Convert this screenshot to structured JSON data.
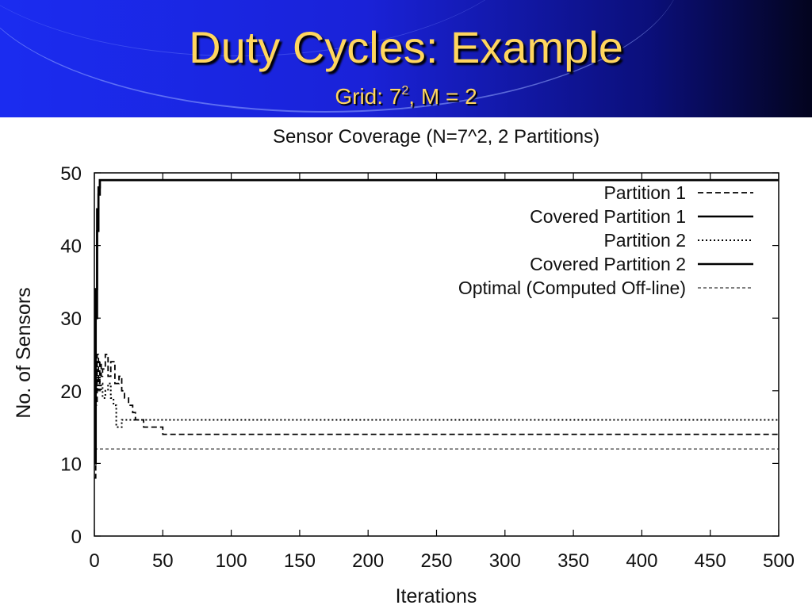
{
  "slide": {
    "title": "Duty Cycles: Example",
    "subtitle_prefix": "Grid: 7",
    "subtitle_sup": "2",
    "subtitle_suffix": ", M = 2"
  },
  "colors": {
    "title_text": "#ffd65e",
    "header_blue": "#1b2cf0",
    "header_dark": "#03041e"
  },
  "chart_data": {
    "type": "line",
    "title": "Sensor Coverage (N=7^2, 2 Partitions)",
    "xlabel": "Iterations",
    "ylabel": "No. of Sensors",
    "xlim": [
      0,
      500
    ],
    "ylim": [
      0,
      50
    ],
    "xticks": [
      0,
      50,
      100,
      150,
      200,
      250,
      300,
      350,
      400,
      450,
      500
    ],
    "yticks": [
      0,
      10,
      20,
      30,
      40,
      50
    ],
    "grid": false,
    "legend_position": "top-right",
    "series": [
      {
        "name": "Partition 1",
        "style": "dashed",
        "x": [
          0,
          1,
          2,
          3,
          4,
          5,
          6,
          8,
          10,
          12,
          15,
          18,
          20,
          22,
          25,
          28,
          30,
          33,
          36,
          40,
          45,
          50,
          60,
          100,
          200,
          300,
          400,
          500
        ],
        "y": [
          8,
          18,
          25,
          21,
          24,
          22,
          23,
          25,
          22,
          24,
          21,
          22,
          20,
          19,
          18,
          17,
          16,
          16,
          15,
          15,
          15,
          14,
          14,
          14,
          14,
          14,
          14,
          14
        ]
      },
      {
        "name": "Covered Partition 1",
        "style": "solid",
        "x": [
          0,
          1,
          2,
          3,
          4,
          5,
          100,
          200,
          300,
          400,
          500
        ],
        "y": [
          10,
          30,
          42,
          47,
          49,
          49,
          49,
          49,
          49,
          49,
          49
        ]
      },
      {
        "name": "Partition 2",
        "style": "dotted",
        "x": [
          0,
          1,
          2,
          3,
          4,
          5,
          6,
          8,
          10,
          12,
          14,
          16,
          20,
          25,
          30,
          35,
          40,
          50,
          100,
          200,
          300,
          400,
          500
        ],
        "y": [
          33,
          24,
          20,
          22,
          20,
          21,
          19,
          20,
          21,
          19,
          18,
          15,
          16,
          16,
          16,
          16,
          16,
          16,
          16,
          16,
          16,
          16,
          16
        ]
      },
      {
        "name": "Covered Partition 2",
        "style": "solid",
        "x": [
          0,
          1,
          2,
          3,
          4,
          6,
          100,
          200,
          300,
          400,
          500
        ],
        "y": [
          12,
          34,
          45,
          48,
          49,
          49,
          49,
          49,
          49,
          49,
          49
        ]
      },
      {
        "name": "Optimal (Computed Off-line)",
        "style": "thin-dashed",
        "x": [
          0,
          500
        ],
        "y": [
          12,
          12
        ]
      }
    ]
  }
}
